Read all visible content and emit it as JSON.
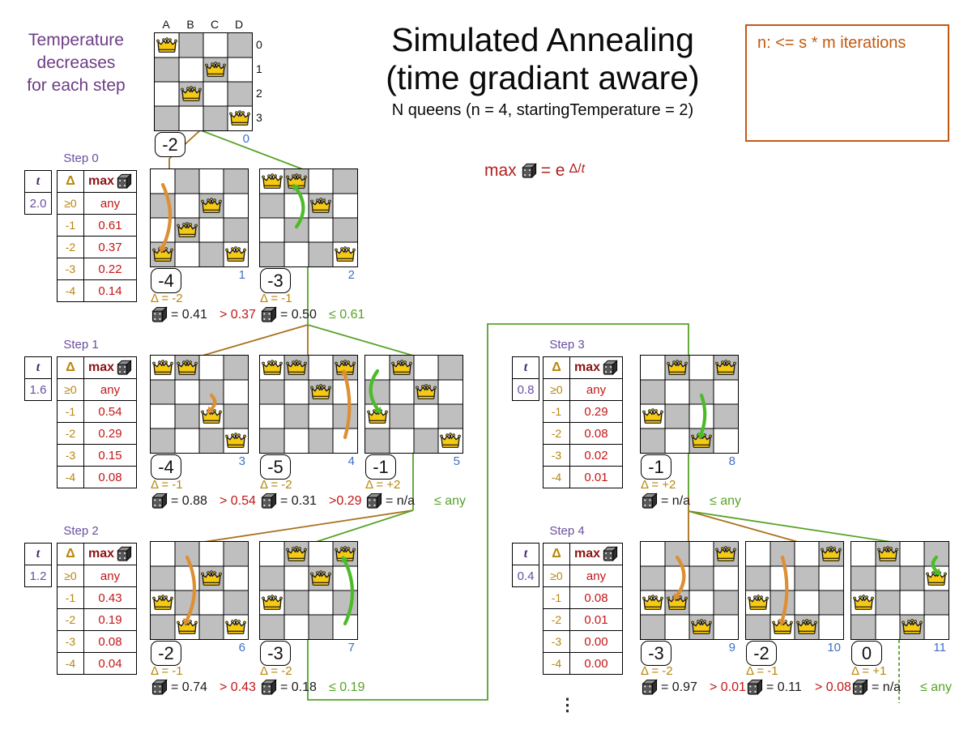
{
  "header": {
    "title_line1": "Simulated Annealing",
    "title_line2": "(time gradiant aware)",
    "subtitle": "N queens (n = 4, startingTemperature = 2)"
  },
  "note_box": {
    "text": "n: <= s * m iterations"
  },
  "temperature_note": {
    "line1": "Temperature",
    "line2": "decreases",
    "line3": "for each step"
  },
  "formula": {
    "max_label": "max",
    "equals": "= e",
    "exp_delta": "Δ/",
    "exp_t": "t"
  },
  "table_headers": {
    "t": "t",
    "delta": "Δ",
    "max": "max"
  },
  "steps": [
    {
      "label": "Step 0",
      "t": "2.0",
      "rows": [
        [
          "≥0",
          "any"
        ],
        [
          "-1",
          "0.61"
        ],
        [
          "-2",
          "0.37"
        ],
        [
          "-3",
          "0.22"
        ],
        [
          "-4",
          "0.14"
        ]
      ]
    },
    {
      "label": "Step 1",
      "t": "1.6",
      "rows": [
        [
          "≥0",
          "any"
        ],
        [
          "-1",
          "0.54"
        ],
        [
          "-2",
          "0.29"
        ],
        [
          "-3",
          "0.15"
        ],
        [
          "-4",
          "0.08"
        ]
      ]
    },
    {
      "label": "Step 2",
      "t": "1.2",
      "rows": [
        [
          "≥0",
          "any"
        ],
        [
          "-1",
          "0.43"
        ],
        [
          "-2",
          "0.19"
        ],
        [
          "-3",
          "0.08"
        ],
        [
          "-4",
          "0.04"
        ]
      ]
    },
    {
      "label": "Step 3",
      "t": "0.8",
      "rows": [
        [
          "≥0",
          "any"
        ],
        [
          "-1",
          "0.29"
        ],
        [
          "-2",
          "0.08"
        ],
        [
          "-3",
          "0.02"
        ],
        [
          "-4",
          "0.01"
        ]
      ]
    },
    {
      "label": "Step 4",
      "t": "0.4",
      "rows": [
        [
          "≥0",
          "any"
        ],
        [
          "-1",
          "0.08"
        ],
        [
          "-2",
          "0.01"
        ],
        [
          "-3",
          "0.00"
        ],
        [
          "-4",
          "0.00"
        ]
      ]
    }
  ],
  "board_axis": {
    "columns": [
      "A",
      "B",
      "C",
      "D"
    ],
    "rows": [
      "0",
      "1",
      "2",
      "3"
    ]
  },
  "boards": [
    {
      "index": "0",
      "score": "-2",
      "queens": [
        "A0",
        "C1",
        "B2",
        "D3"
      ],
      "axis": true
    },
    {
      "index": "1",
      "score": "-4",
      "queens": [
        "C1",
        "B2",
        "A3",
        "D3"
      ],
      "move": {
        "from": "A0",
        "to": "A3"
      },
      "accepted": false,
      "delta": "Δ = -2",
      "dice": "= 0.41",
      "threshold": "> 0.37"
    },
    {
      "index": "2",
      "score": "-3",
      "queens": [
        "A0",
        "B0",
        "C1",
        "D3"
      ],
      "move": {
        "from": "B2",
        "to": "B0"
      },
      "accepted": true,
      "delta": "Δ = -1",
      "dice": "= 0.50",
      "threshold": "≤ 0.61"
    },
    {
      "index": "3",
      "score": "-4",
      "queens": [
        "A0",
        "B0",
        "C2",
        "D3"
      ],
      "move": {
        "from": "C1",
        "to": "C2"
      },
      "accepted": false,
      "delta": "Δ = -1",
      "dice": "= 0.88",
      "threshold": "> 0.54"
    },
    {
      "index": "4",
      "score": "-5",
      "queens": [
        "A0",
        "B0",
        "C1",
        "D0"
      ],
      "move": {
        "from": "D3",
        "to": "D0"
      },
      "accepted": false,
      "delta": "Δ = -2",
      "dice": "= 0.31",
      "threshold": ">0.29"
    },
    {
      "index": "5",
      "score": "-1",
      "queens": [
        "B0",
        "C1",
        "A2",
        "D3"
      ],
      "move": {
        "from": "A0",
        "to": "A2"
      },
      "accepted": true,
      "delta": "Δ = +2",
      "dice": "= n/a",
      "threshold": "≤ any"
    },
    {
      "index": "6",
      "score": "-2",
      "queens": [
        "C1",
        "A2",
        "B3",
        "D3"
      ],
      "move": {
        "from": "B0",
        "to": "B3"
      },
      "accepted": false,
      "delta": "Δ = -1",
      "dice": "= 0.74",
      "threshold": "> 0.43"
    },
    {
      "index": "7",
      "score": "-3",
      "queens": [
        "B0",
        "C1",
        "A2",
        "D0"
      ],
      "move": {
        "from": "D3",
        "to": "D0"
      },
      "accepted": true,
      "delta": "Δ = -2",
      "dice": "= 0.18",
      "threshold": "≤ 0.19"
    },
    {
      "index": "8",
      "score": "-1",
      "queens": [
        "B0",
        "D0",
        "A2",
        "C3"
      ],
      "move": {
        "from": "C1",
        "to": "C3"
      },
      "accepted": true,
      "delta": "Δ = +2",
      "dice": "= n/a",
      "threshold": "≤ any"
    },
    {
      "index": "9",
      "score": "-3",
      "queens": [
        "D0",
        "A2",
        "B2",
        "C3"
      ],
      "move": {
        "from": "B0",
        "to": "B2"
      },
      "accepted": false,
      "delta": "Δ = -2",
      "dice": "= 0.97",
      "threshold": "> 0.01"
    },
    {
      "index": "10",
      "score": "-2",
      "queens": [
        "D0",
        "A2",
        "B3",
        "C3"
      ],
      "move": {
        "from": "B0",
        "to": "B3"
      },
      "accepted": false,
      "delta": "Δ = -1",
      "dice": "= 0.11",
      "threshold": "> 0.08"
    },
    {
      "index": "11",
      "score": "0",
      "queens": [
        "B0",
        "D1",
        "A2",
        "C3"
      ],
      "move": {
        "from": "D0",
        "to": "D1"
      },
      "accepted": true,
      "delta": "Δ = +1",
      "dice": "= n/a",
      "threshold": "≤ any"
    }
  ],
  "ellipsis": "⋮",
  "colors": {
    "purple": "#6d3c86",
    "step_purple": "#6a4e9e",
    "t_purple": "#4a2a6b",
    "gold": "#b8860b",
    "line_orange": "#a8711c",
    "arrow_orange": "#dd8f33",
    "line_green": "#56a327",
    "arrow_green": "#4cbb2a",
    "red": "#c21717",
    "dark_red": "#8e1414",
    "formula_red": "#b22222",
    "blue": "#3f6fc4",
    "note_orange": "#c45911",
    "board_grey": "#bfbfbf"
  }
}
